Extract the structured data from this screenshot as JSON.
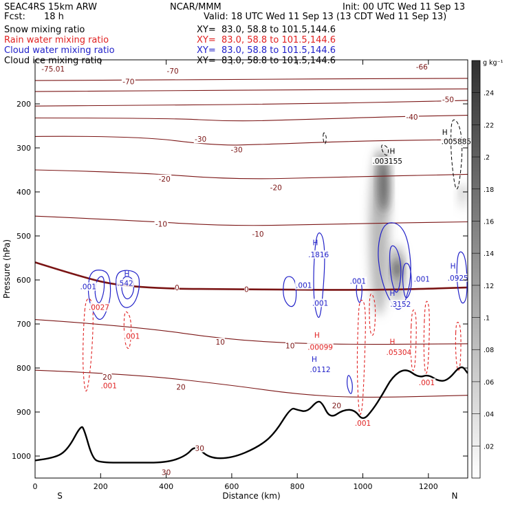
{
  "header": {
    "model": "SEAC4RS 15km ARW",
    "center": "NCAR/MMM",
    "init": "Init: 00 UTC Wed 11 Sep 13",
    "fcst_label": "Fcst:",
    "fcst_value": "18 h",
    "valid": "Valid: 18 UTC Wed 11 Sep 13 (13 CDT Wed 11 Sep 13)"
  },
  "colors": {
    "temperature": "#7a1414",
    "freezing": "#7a1414",
    "rain": "#e02020",
    "cloud_water": "#2020c8",
    "cloud_ice": "#000000",
    "terrain": "#000000"
  },
  "legend": [
    {
      "label": "Snow mixing ratio",
      "xy": "XY=  83.0, 58.8 to 101.5,144.6",
      "color": "#000000"
    },
    {
      "label": "Rain water mixing ratio",
      "xy": "XY=  83.0, 58.8 to 101.5,144.6",
      "color": "#e02020"
    },
    {
      "label": "Cloud water mixing ratio",
      "xy": "XY=  83.0, 58.8 to 101.5,144.6",
      "color": "#2020c8"
    },
    {
      "label": "Cloud ice mixing ratio",
      "xy": "XY=  83.0, 58.8 to 101.5,144.6",
      "color": "#000000"
    }
  ],
  "chart_data": {
    "type": "heatmap",
    "xlabel": "Distance (km)",
    "ylabel": "Pressure (hPa)",
    "xlim": [
      0,
      1320
    ],
    "ylim": [
      1050,
      100
    ],
    "x_ticks": [
      0,
      200,
      400,
      600,
      800,
      1000,
      1200
    ],
    "y_ticks": [
      200,
      300,
      400,
      500,
      600,
      700,
      800,
      900,
      1000
    ],
    "x_end_labels": {
      "left": "S",
      "right": "N"
    },
    "colorbar": {
      "unit": "g kg⁻¹",
      "ticks": [
        ".02",
        ".04",
        ".06",
        ".08",
        ".1",
        ".12",
        ".14",
        ".16",
        ".18",
        ".2",
        ".22",
        ".24"
      ],
      "values": [
        0.02,
        0.04,
        0.06,
        0.08,
        0.1,
        0.12,
        0.14,
        0.16,
        0.18,
        0.2,
        0.22,
        0.24
      ],
      "range": [
        0,
        0.26
      ]
    },
    "temperature_isotherms": [
      {
        "value": -70,
        "label": "-70",
        "points": [
          [
            0,
            147
          ],
          [
            300,
            146
          ],
          [
            700,
            144
          ],
          [
            1000,
            143
          ],
          [
            1320,
            142
          ]
        ]
      },
      {
        "value": -60,
        "label": "",
        "points": [
          [
            0,
            172
          ],
          [
            400,
            170
          ],
          [
            800,
            168
          ],
          [
            1320,
            166
          ]
        ]
      },
      {
        "value": -50,
        "label": "-50",
        "points": [
          [
            0,
            205
          ],
          [
            400,
            203
          ],
          [
            800,
            200
          ],
          [
            1100,
            196
          ],
          [
            1320,
            192
          ]
        ]
      },
      {
        "value": -40,
        "label": "-40",
        "points": [
          [
            0,
            232
          ],
          [
            400,
            232
          ],
          [
            600,
            240
          ],
          [
            800,
            236
          ],
          [
            1100,
            229
          ],
          [
            1320,
            226
          ]
        ]
      },
      {
        "value": -30,
        "label": "-30",
        "points": [
          [
            0,
            274
          ],
          [
            300,
            272
          ],
          [
            550,
            295
          ],
          [
            700,
            292
          ],
          [
            1000,
            284
          ],
          [
            1320,
            281
          ]
        ]
      },
      {
        "value": -20,
        "label": "-20",
        "points": [
          [
            0,
            350
          ],
          [
            300,
            355
          ],
          [
            600,
            372
          ],
          [
            900,
            367
          ],
          [
            1320,
            360
          ]
        ]
      },
      {
        "value": -10,
        "label": "-10",
        "points": [
          [
            0,
            455
          ],
          [
            300,
            465
          ],
          [
            600,
            478
          ],
          [
            900,
            473
          ],
          [
            1320,
            468
          ]
        ]
      },
      {
        "value": 0,
        "label": "0",
        "points": [
          [
            0,
            560
          ],
          [
            150,
            595
          ],
          [
            250,
            612
          ],
          [
            400,
            620
          ],
          [
            600,
            621
          ],
          [
            800,
            622
          ],
          [
            1000,
            623
          ],
          [
            1200,
            620
          ],
          [
            1320,
            617
          ]
        ]
      },
      {
        "value": 10,
        "label": "10",
        "points": [
          [
            0,
            690
          ],
          [
            300,
            705
          ],
          [
            600,
            737
          ],
          [
            900,
            747
          ],
          [
            1320,
            745
          ]
        ]
      },
      {
        "value": 20,
        "label": "20",
        "points": [
          [
            0,
            805
          ],
          [
            300,
            814
          ],
          [
            600,
            839
          ],
          [
            800,
            860
          ],
          [
            1000,
            868
          ],
          [
            1320,
            862
          ]
        ]
      }
    ],
    "temperature_labels": [
      {
        "text": "-75.01",
        "x": 55,
        "p": 120
      },
      {
        "text": "-70",
        "x": 285,
        "p": 149
      },
      {
        "text": "-70",
        "x": 420,
        "p": 125
      },
      {
        "text": "-66",
        "x": 1180,
        "p": 116
      },
      {
        "text": "-50",
        "x": 1260,
        "p": 190
      },
      {
        "text": "-40",
        "x": 1150,
        "p": 230
      },
      {
        "text": "-30",
        "x": 505,
        "p": 280
      },
      {
        "text": "-30",
        "x": 615,
        "p": 304
      },
      {
        "text": "-20",
        "x": 395,
        "p": 370
      },
      {
        "text": "-20",
        "x": 735,
        "p": 390
      },
      {
        "text": "-10",
        "x": 385,
        "p": 473
      },
      {
        "text": "-10",
        "x": 680,
        "p": 495
      },
      {
        "text": "0",
        "x": 433,
        "p": 617
      },
      {
        "text": "0",
        "x": 645,
        "p": 621
      },
      {
        "text": "10",
        "x": 565,
        "p": 741
      },
      {
        "text": "10",
        "x": 778,
        "p": 749
      },
      {
        "text": "20",
        "x": 220,
        "p": 820
      },
      {
        "text": "20",
        "x": 445,
        "p": 843
      },
      {
        "text": "20",
        "x": 920,
        "p": 885
      },
      {
        "text": "30",
        "x": 502,
        "p": 982
      },
      {
        "text": "30",
        "x": 400,
        "p": 1037
      }
    ],
    "terrain": [
      [
        0,
        1010
      ],
      [
        60,
        1005
      ],
      [
        100,
        985
      ],
      [
        140,
        930
      ],
      [
        150,
        940
      ],
      [
        175,
        1005
      ],
      [
        200,
        1015
      ],
      [
        300,
        1015
      ],
      [
        400,
        1015
      ],
      [
        460,
        1000
      ],
      [
        490,
        975
      ],
      [
        530,
        1005
      ],
      [
        600,
        1005
      ],
      [
        680,
        980
      ],
      [
        730,
        950
      ],
      [
        780,
        890
      ],
      [
        800,
        895
      ],
      [
        830,
        900
      ],
      [
        860,
        875
      ],
      [
        875,
        878
      ],
      [
        900,
        915
      ],
      [
        940,
        895
      ],
      [
        975,
        895
      ],
      [
        1000,
        920
      ],
      [
        1030,
        895
      ],
      [
        1060,
        860
      ],
      [
        1090,
        820
      ],
      [
        1130,
        800
      ],
      [
        1170,
        822
      ],
      [
        1200,
        815
      ],
      [
        1230,
        830
      ],
      [
        1260,
        828
      ],
      [
        1300,
        792
      ],
      [
        1320,
        812
      ]
    ],
    "snow_shading": [
      {
        "x": [
          1020,
          1080
        ],
        "p": [
          300,
          680
        ],
        "peak_x": 1065,
        "peak_p": 380,
        "max": 0.26
      },
      {
        "x": [
          1080,
          1130
        ],
        "p": [
          520,
          650
        ],
        "peak_x": 1105,
        "peak_p": 575,
        "max": 0.3152
      },
      {
        "x": [
          1290,
          1320
        ],
        "p": [
          380,
          440
        ],
        "peak_x": 1305,
        "peak_p": 400,
        "max": 0.06
      }
    ],
    "maxima_labels": [
      {
        "field": "cloud_ice",
        "text": ".003155",
        "x": 1075,
        "p": 330
      },
      {
        "field": "cloud_ice",
        "text": ".005885",
        "x": 1285,
        "p": 285
      },
      {
        "field": "cloud_water",
        "text": ".1816",
        "x": 865,
        "p": 542
      },
      {
        "field": "cloud_water",
        "text": ".001",
        "x": 820,
        "p": 612
      },
      {
        "field": "cloud_water",
        "text": ".001",
        "x": 870,
        "p": 652
      },
      {
        "field": "cloud_water",
        "text": ".001",
        "x": 985,
        "p": 602
      },
      {
        "field": "cloud_water",
        "text": ".001",
        "x": 1180,
        "p": 598
      },
      {
        "field": "cloud_water",
        "text": ".0925",
        "x": 1290,
        "p": 595
      },
      {
        "field": "cloud_water",
        "text": ".3152",
        "x": 1115,
        "p": 655
      },
      {
        "field": "cloud_water",
        "text": ".0112",
        "x": 870,
        "p": 803
      },
      {
        "field": "cloud_water",
        "text": ".001",
        "x": 162,
        "p": 615
      },
      {
        "field": "cloud_water",
        "text": ".542",
        "x": 275,
        "p": 607
      },
      {
        "field": "rain",
        "text": ".0027",
        "x": 195,
        "p": 662
      },
      {
        "field": "rain",
        "text": ".001",
        "x": 295,
        "p": 727
      },
      {
        "field": "rain",
        "text": ".001",
        "x": 225,
        "p": 840
      },
      {
        "field": "rain",
        "text": ".00099",
        "x": 870,
        "p": 752
      },
      {
        "field": "rain",
        "text": ".05304",
        "x": 1110,
        "p": 764
      },
      {
        "field": "rain",
        "text": ".001",
        "x": 1195,
        "p": 833
      },
      {
        "field": "rain",
        "text": ".001",
        "x": 1000,
        "p": 925
      }
    ],
    "high_markers": [
      {
        "field": "cloud_ice",
        "x": 1090,
        "p": 307
      },
      {
        "field": "cloud_ice",
        "x": 1250,
        "p": 264
      },
      {
        "field": "cloud_water",
        "x": 855,
        "p": 515
      },
      {
        "field": "cloud_water",
        "x": 280,
        "p": 585
      },
      {
        "field": "cloud_water",
        "x": 1090,
        "p": 630
      },
      {
        "field": "cloud_water",
        "x": 1275,
        "p": 568
      },
      {
        "field": "cloud_water",
        "x": 852,
        "p": 780
      },
      {
        "field": "rain",
        "x": 860,
        "p": 725
      },
      {
        "field": "rain",
        "x": 1090,
        "p": 740
      }
    ],
    "cloud_water_contours": [
      [
        [
          170,
          578
        ],
        [
          215,
          577
        ],
        [
          230,
          600
        ],
        [
          230,
          650
        ],
        [
          200,
          700
        ],
        [
          170,
          665
        ],
        [
          160,
          620
        ]
      ],
      [
        [
          190,
          595
        ],
        [
          210,
          590
        ],
        [
          212,
          625
        ],
        [
          195,
          660
        ],
        [
          180,
          630
        ]
      ],
      [
        [
          250,
          577
        ],
        [
          315,
          580
        ],
        [
          320,
          620
        ],
        [
          300,
          660
        ],
        [
          265,
          665
        ],
        [
          245,
          620
        ]
      ],
      [
        [
          268,
          590
        ],
        [
          300,
          595
        ],
        [
          302,
          630
        ],
        [
          280,
          648
        ],
        [
          262,
          625
        ]
      ],
      [
        [
          860,
          488
        ],
        [
          880,
          500
        ],
        [
          885,
          560
        ],
        [
          875,
          660
        ],
        [
          865,
          695
        ],
        [
          850,
          650
        ],
        [
          850,
          560
        ]
      ],
      [
        [
          760,
          590
        ],
        [
          795,
          595
        ],
        [
          798,
          650
        ],
        [
          780,
          665
        ],
        [
          755,
          640
        ]
      ],
      [
        [
          985,
          590
        ],
        [
          1000,
          615
        ],
        [
          992,
          660
        ],
        [
          978,
          630
        ]
      ],
      [
        [
          1065,
          470
        ],
        [
          1110,
          470
        ],
        [
          1140,
          510
        ],
        [
          1150,
          600
        ],
        [
          1115,
          680
        ],
        [
          1075,
          640
        ],
        [
          1050,
          580
        ],
        [
          1045,
          520
        ]
      ],
      [
        [
          1080,
          520
        ],
        [
          1105,
          525
        ],
        [
          1120,
          580
        ],
        [
          1105,
          640
        ],
        [
          1085,
          600
        ]
      ],
      [
        [
          1125,
          560
        ],
        [
          1145,
          565
        ],
        [
          1150,
          620
        ],
        [
          1130,
          650
        ],
        [
          1120,
          600
        ]
      ],
      [
        [
          1290,
          530
        ],
        [
          1315,
          545
        ],
        [
          1320,
          640
        ],
        [
          1300,
          660
        ],
        [
          1285,
          600
        ]
      ],
      [
        [
          955,
          810
        ],
        [
          970,
          835
        ],
        [
          965,
          865
        ],
        [
          950,
          840
        ]
      ]
    ],
    "rain_contours": [
      [
        [
          155,
          640
        ],
        [
          175,
          645
        ],
        [
          178,
          700
        ],
        [
          170,
          800
        ],
        [
          155,
          870
        ],
        [
          145,
          800
        ],
        [
          148,
          700
        ]
      ],
      [
        [
          275,
          665
        ],
        [
          295,
          690
        ],
        [
          290,
          760
        ],
        [
          275,
          750
        ],
        [
          270,
          700
        ]
      ],
      [
        [
          990,
          640
        ],
        [
          1010,
          655
        ],
        [
          1005,
          800
        ],
        [
          998,
          900
        ],
        [
          988,
          910
        ],
        [
          982,
          800
        ],
        [
          985,
          700
        ]
      ],
      [
        [
          1020,
          620
        ],
        [
          1040,
          650
        ],
        [
          1035,
          730
        ],
        [
          1020,
          720
        ]
      ],
      [
        [
          1150,
          660
        ],
        [
          1165,
          680
        ],
        [
          1160,
          800
        ],
        [
          1150,
          810
        ],
        [
          1145,
          750
        ]
      ],
      [
        [
          1190,
          640
        ],
        [
          1205,
          660
        ],
        [
          1200,
          800
        ],
        [
          1190,
          820
        ],
        [
          1185,
          750
        ]
      ],
      [
        [
          1285,
          690
        ],
        [
          1300,
          705
        ],
        [
          1298,
          800
        ],
        [
          1288,
          810
        ],
        [
          1282,
          750
        ]
      ]
    ],
    "cloud_ice_contours": [
      [
        [
          1270,
          230
        ],
        [
          1295,
          245
        ],
        [
          1305,
          300
        ],
        [
          1295,
          380
        ],
        [
          1285,
          400
        ],
        [
          1275,
          360
        ],
        [
          1268,
          300
        ]
      ],
      [
        [
          1055,
          290
        ],
        [
          1080,
          300
        ],
        [
          1075,
          320
        ],
        [
          1060,
          310
        ]
      ],
      [
        [
          880,
          262
        ],
        [
          890,
          275
        ],
        [
          885,
          295
        ],
        [
          878,
          280
        ]
      ]
    ]
  }
}
